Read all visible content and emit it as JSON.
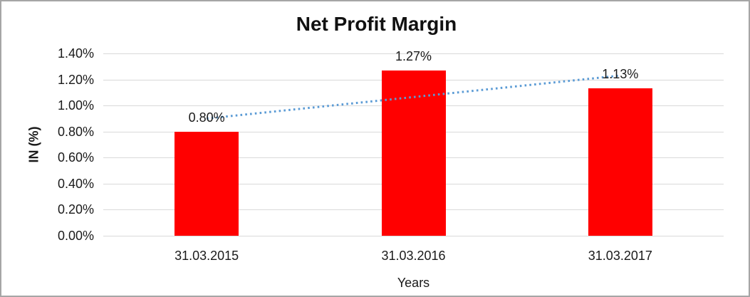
{
  "window": {
    "background_color": "#FFFFFF",
    "border_color": "#A6A6A6"
  },
  "chart_data": {
    "type": "bar",
    "title": "Net Profit Margin",
    "xlabel": "Years",
    "ylabel": "IN (%)",
    "categories": [
      "31.03.2015",
      "31.03.2016",
      "31.03.2017"
    ],
    "values": [
      0.8,
      1.27,
      1.13
    ],
    "data_labels": [
      "0.80%",
      "1.27%",
      "1.13%"
    ],
    "ylim": [
      0,
      1.4
    ],
    "ytick_step": 0.2,
    "ytick_labels": [
      "0.00%",
      "0.20%",
      "0.40%",
      "0.60%",
      "0.80%",
      "1.00%",
      "1.20%",
      "1.40%"
    ],
    "grid": "horizontal",
    "legend": "none",
    "bar_color": "#FF0000",
    "gridline_color": "#D9D9D9",
    "trendline": {
      "type": "linear",
      "style": "dotted",
      "color": "#5B9BD5",
      "start_value": 0.9,
      "end_value": 1.23
    }
  }
}
